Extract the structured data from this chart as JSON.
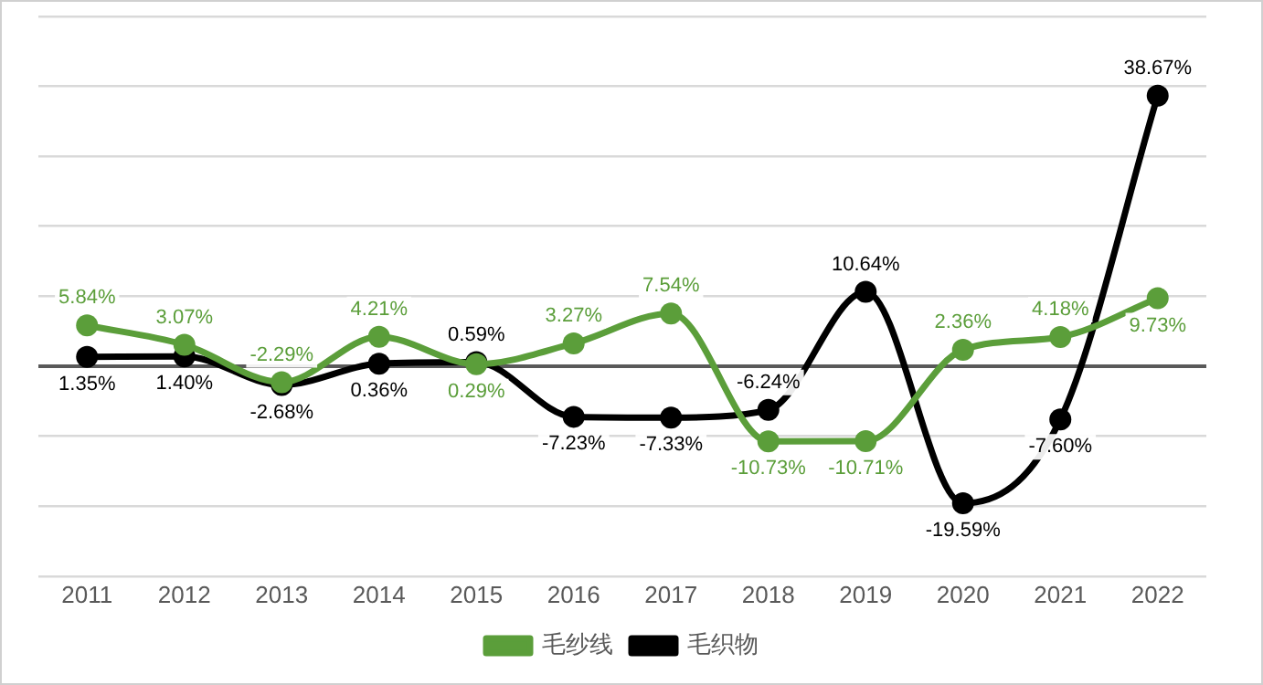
{
  "chart_data": {
    "type": "line",
    "categories": [
      "2011",
      "2012",
      "2013",
      "2014",
      "2015",
      "2016",
      "2017",
      "2018",
      "2019",
      "2020",
      "2021",
      "2022"
    ],
    "series": [
      {
        "name": "毛纱线",
        "color": "#5b9e3a",
        "values": [
          5.84,
          3.07,
          -2.29,
          4.21,
          0.29,
          3.27,
          7.54,
          -10.73,
          -10.71,
          2.36,
          4.18,
          9.73
        ],
        "value_labels": [
          "5.84%",
          "3.07%",
          "-2.29%",
          "4.21%",
          "0.29%",
          "3.27%",
          "7.54%",
          "-10.73%",
          "-10.71%",
          "2.36%",
          "4.18%",
          "9.73%"
        ]
      },
      {
        "name": "毛织物",
        "color": "#000000",
        "values": [
          1.35,
          1.4,
          -2.68,
          0.36,
          0.59,
          -7.23,
          -7.33,
          -6.24,
          10.64,
          -19.59,
          -7.6,
          38.67
        ],
        "value_labels": [
          "1.35%",
          "1.40%",
          "-2.68%",
          "0.36%",
          "0.59%",
          "-7.23%",
          "-7.33%",
          "-6.24%",
          "10.64%",
          "-19.59%",
          "-7.60%",
          "38.67%"
        ]
      }
    ],
    "ylim": [
      -30,
      50
    ],
    "yticks": [
      {
        "value": -30,
        "label": null
      },
      {
        "value": -20,
        "label": null
      },
      {
        "value": -10,
        "label": null
      },
      {
        "value": 0,
        "label": null
      },
      {
        "value": 10,
        "label": null
      },
      {
        "value": 20,
        "label": null
      },
      {
        "value": 30,
        "label": null
      },
      {
        "value": 40,
        "label": null
      },
      {
        "value": 50,
        "label": null
      }
    ],
    "tick_labels": "x",
    "grid": "y",
    "legend": "bottom",
    "marker": "circle",
    "line_style": "solid"
  }
}
